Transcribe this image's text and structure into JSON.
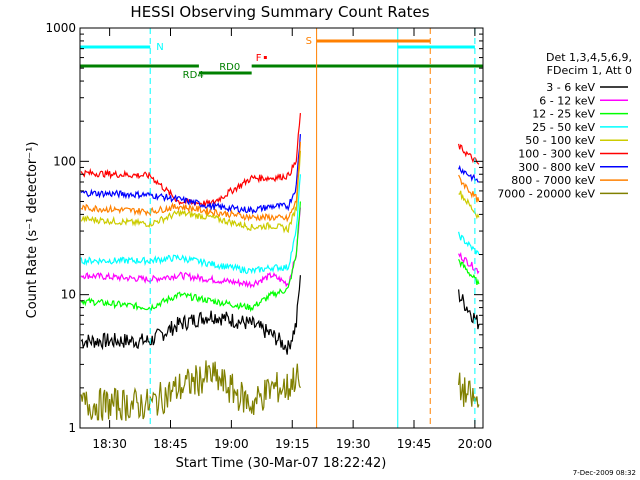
{
  "chart_data": {
    "type": "line",
    "title": "HESSI Observing Summary Count Rates",
    "xlabel": "Start Time (30-Mar-07 18:22:42)",
    "ylabel": "Count Rate (s⁻¹ detector⁻¹)",
    "y_scale": "log",
    "ylim": [
      1,
      1000
    ],
    "xlim": [
      "18:22:42",
      "20:02:00"
    ],
    "x_ticks": [
      "18:30",
      "18:45",
      "19:00",
      "19:15",
      "19:30",
      "19:45",
      "20:00"
    ],
    "y_ticks": [
      "1",
      "10",
      "100",
      "1000"
    ],
    "grid": false,
    "legend_position": "right",
    "legend_header": [
      "Det 1,3,4,5,6,9,",
      "FDecim 1, Att 0"
    ],
    "series": [
      {
        "name": "3 - 6 keV",
        "color": "#000000",
        "x": [
          "18:23",
          "18:40",
          "18:47",
          "18:55",
          "19:05",
          "19:10",
          "19:14",
          "19:16",
          "19:17",
          "19:56",
          "20:01"
        ],
        "y": [
          4.5,
          4.5,
          6,
          7,
          6,
          5,
          4,
          6,
          14,
          10,
          6
        ]
      },
      {
        "name": "6 - 12 keV",
        "color": "#ff00ff",
        "x": [
          "18:23",
          "18:40",
          "18:47",
          "18:55",
          "19:05",
          "19:10",
          "19:14",
          "19:16",
          "19:17",
          "19:56",
          "20:01"
        ],
        "y": [
          14,
          13,
          14,
          13,
          12,
          14,
          12,
          20,
          45,
          20,
          15
        ]
      },
      {
        "name": "12 - 25 keV",
        "color": "#00ff00",
        "x": [
          "18:23",
          "18:40",
          "18:47",
          "18:55",
          "19:05",
          "19:10",
          "19:14",
          "19:16",
          "19:17",
          "19:56",
          "20:01"
        ],
        "y": [
          9,
          8,
          10,
          9,
          8,
          10,
          11,
          20,
          50,
          18,
          12
        ]
      },
      {
        "name": "25 - 50 keV",
        "color": "#00ffff",
        "x": [
          "18:23",
          "18:40",
          "18:47",
          "18:55",
          "19:05",
          "19:10",
          "19:14",
          "19:16",
          "19:17",
          "19:56",
          "20:01"
        ],
        "y": [
          18,
          18,
          19,
          17,
          15,
          16,
          16,
          30,
          80,
          28,
          20
        ]
      },
      {
        "name": "50 - 100 keV",
        "color": "#cccc00",
        "x": [
          "18:23",
          "18:40",
          "18:47",
          "18:55",
          "19:05",
          "19:10",
          "19:14",
          "19:16",
          "19:17",
          "19:56",
          "20:01"
        ],
        "y": [
          37,
          34,
          41,
          38,
          32,
          33,
          31,
          45,
          120,
          60,
          38
        ]
      },
      {
        "name": "100 - 300 keV",
        "color": "#ff0000",
        "x": [
          "18:23",
          "18:40",
          "18:47",
          "18:55",
          "19:05",
          "19:10",
          "19:14",
          "19:16",
          "19:17",
          "19:56",
          "20:01"
        ],
        "y": [
          82,
          78,
          50,
          48,
          75,
          75,
          78,
          100,
          230,
          130,
          95
        ]
      },
      {
        "name": "300 - 800 keV",
        "color": "#0000ff",
        "x": [
          "18:23",
          "18:40",
          "18:47",
          "18:55",
          "19:05",
          "19:10",
          "19:14",
          "19:16",
          "19:17",
          "19:56",
          "20:01"
        ],
        "y": [
          58,
          56,
          52,
          46,
          43,
          46,
          46,
          65,
          160,
          90,
          70
        ]
      },
      {
        "name": "800 - 7000 keV",
        "color": "#ff8000",
        "x": [
          "18:23",
          "18:40",
          "18:47",
          "18:55",
          "19:05",
          "19:10",
          "19:14",
          "19:16",
          "19:17",
          "19:56",
          "20:01"
        ],
        "y": [
          45,
          42,
          46,
          42,
          38,
          38,
          37,
          50,
          140,
          75,
          50
        ]
      },
      {
        "name": "7000 - 20000 keV",
        "color": "#808000",
        "x": [
          "18:23",
          "18:40",
          "18:47",
          "18:55",
          "19:05",
          "19:10",
          "19:14",
          "19:16",
          "19:17",
          "19:56",
          "20:01"
        ],
        "y": [
          1.5,
          1.5,
          2,
          2.5,
          1.5,
          2,
          2,
          2.5,
          2,
          2,
          1.5
        ]
      }
    ],
    "annotations": [
      {
        "label": "N",
        "color": "#00ffff"
      },
      {
        "label": "RD0",
        "color": "#008000"
      },
      {
        "label": "RD4",
        "color": "#008000"
      },
      {
        "label": "F",
        "color": "#ff0000"
      },
      {
        "label": "S",
        "color": "#ff8000"
      }
    ],
    "timestamp": "7-Dec-2009 08:32"
  }
}
